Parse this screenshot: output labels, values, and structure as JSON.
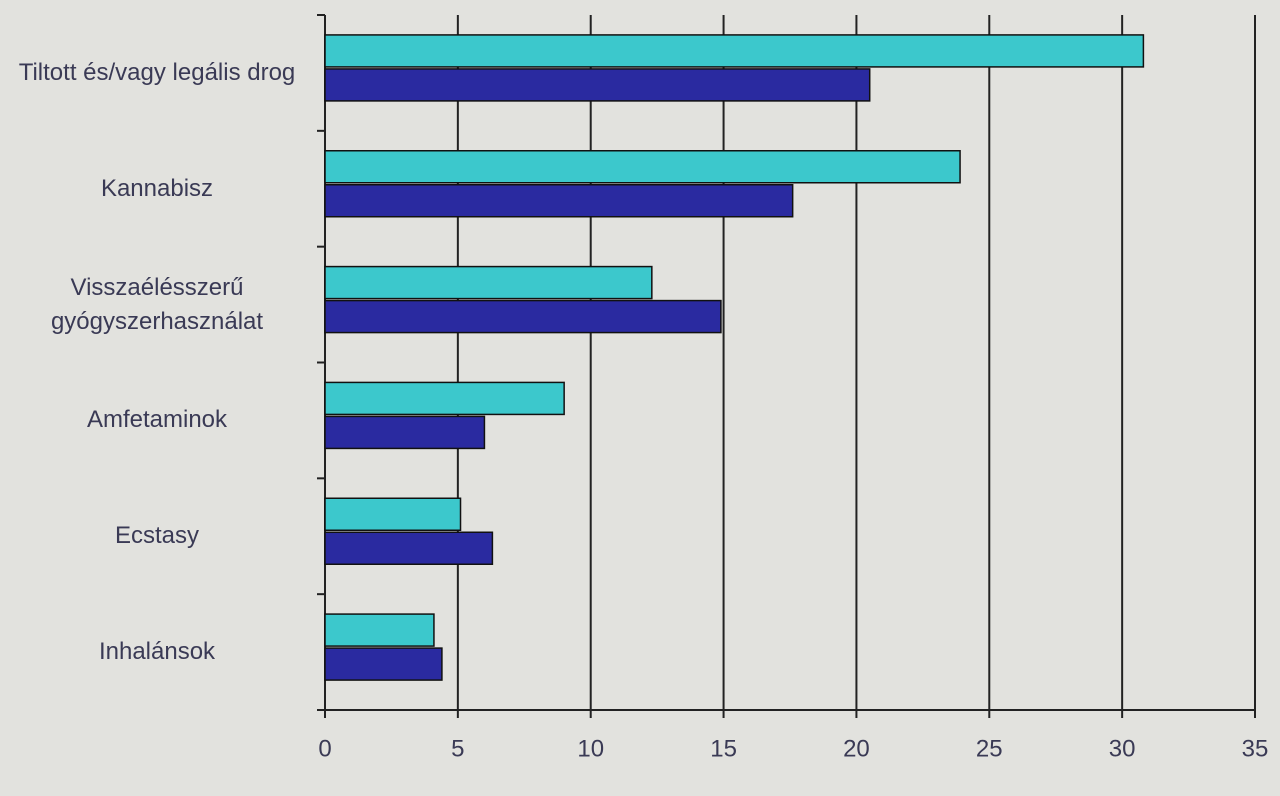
{
  "chart_data": {
    "type": "hbar",
    "categories": [
      "Tiltott és/vagy legális drog",
      "Kannabisz",
      "Visszaélésszerű gyógyszerhasználat",
      "Amfetaminok",
      "Ecstasy",
      "Inhalánsok"
    ],
    "series": [
      {
        "color": "#3cc8cc",
        "values": [
          30.8,
          23.9,
          12.3,
          9.0,
          5.1,
          4.1
        ]
      },
      {
        "color": "#2a2aa0",
        "values": [
          20.5,
          17.6,
          14.9,
          6.0,
          6.3,
          4.4
        ]
      }
    ],
    "xlim": [
      0,
      35
    ],
    "xticks": [
      0,
      5,
      10,
      15,
      20,
      25,
      30,
      35
    ],
    "grid": true
  }
}
